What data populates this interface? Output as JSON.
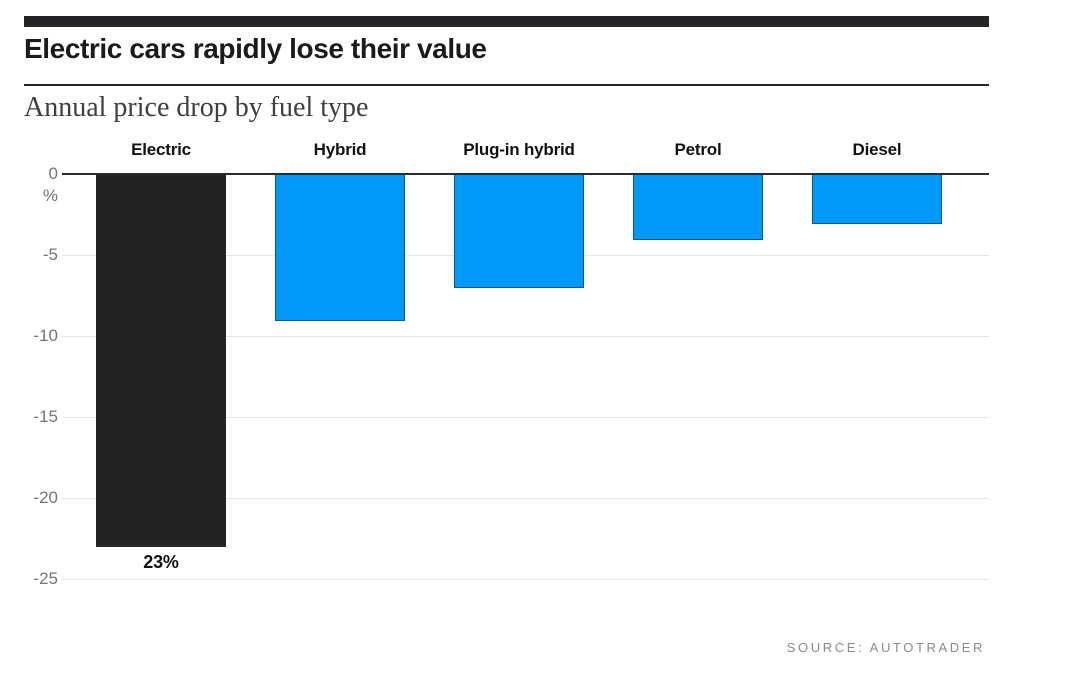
{
  "header": {
    "title": "Electric cars rapidly lose their value",
    "subtitle": "Annual price drop by fuel type"
  },
  "footer": {
    "source": "SOURCE: AUTOTRADER"
  },
  "colors": {
    "accent_bar": "#232326",
    "electric_bar": "#232323",
    "default_bar": "#0099f7",
    "grid_line": "#e6e6e6",
    "zero_line": "#2b2b2b",
    "tick_text": "#74747a",
    "source_text": "#8a8a92"
  },
  "chart_data": {
    "type": "bar",
    "title": "Electric cars rapidly lose their value",
    "subtitle": "Annual price drop by fuel type",
    "categories": [
      "Electric",
      "Hybrid",
      "Plug-in hybrid",
      "Petrol",
      "Diesel"
    ],
    "values": [
      -23,
      -9,
      -7,
      -4,
      -3
    ],
    "unit": "%",
    "ylabel": "%",
    "ylim": [
      -25,
      0
    ],
    "yticks": [
      0,
      -5,
      -10,
      -15,
      -20,
      -25
    ],
    "grid": "horizontal",
    "legend": "none",
    "data_labels": [
      "23%",
      "",
      "",
      "",
      ""
    ],
    "bar_colors": [
      "#232323",
      "#0099f7",
      "#0099f7",
      "#0099f7",
      "#0099f7"
    ],
    "source": "SOURCE: AUTOTRADER"
  }
}
